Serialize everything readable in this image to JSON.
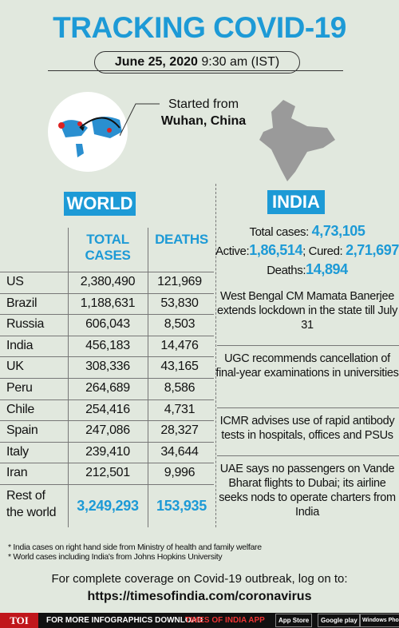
{
  "header": {
    "title": "TRACKING COVID-19",
    "date": "June 25, 2020",
    "time": "9:30 am (IST)"
  },
  "map": {
    "caption_line1": "Started from",
    "caption_line2": "Wuhan, China"
  },
  "world": {
    "label": "WORLD",
    "columns": [
      "TOTAL CASES",
      "DEATHS"
    ],
    "rows": [
      [
        "US",
        "2,380,490",
        "121,969"
      ],
      [
        "Brazil",
        "1,188,631",
        "53,830"
      ],
      [
        "Russia",
        "606,043",
        "8,503"
      ],
      [
        "India",
        "456,183",
        "14,476"
      ],
      [
        "UK",
        "308,336",
        "43,165"
      ],
      [
        "Peru",
        "264,689",
        "8,586"
      ],
      [
        "Chile",
        "254,416",
        "4,731"
      ],
      [
        "Spain",
        "247,086",
        "28,327"
      ],
      [
        "Italy",
        "239,410",
        "34,644"
      ],
      [
        "Iran",
        "212,501",
        "9,996"
      ]
    ],
    "total": [
      "Rest of the world",
      "3,249,293",
      "153,935"
    ]
  },
  "india": {
    "label": "INDIA",
    "total_label": "Total cases:",
    "total": "4,73,105",
    "active_label": "Active:",
    "active": "1,86,514",
    "cured_label": "; Cured:",
    "cured": "2,71,697",
    "deaths_label": "Deaths:",
    "deaths": "14,894",
    "news": [
      "West Bengal CM Mamata Banerjee extends lockdown in the state till July 31",
      "UGC recommends cancellation of final-year examinations in universities",
      "ICMR advises use of rapid antibody tests in hospitals, offices and PSUs",
      "UAE says no passengers on Vande Bharat flights to Dubai; its airline seeks nods to operate charters from India"
    ]
  },
  "footnotes": [
    "* India cases on right hand side from Ministry of health and family welfare",
    "* World cases including India's from Johns Hopkins University"
  ],
  "footer": {
    "text": "For complete coverage on Covid-19 outbreak, log on to:",
    "url": "https://timesofindia.com/coronavirus"
  },
  "bar": {
    "logo": "TOI",
    "text": "FOR MORE INFOGRAPHICS DOWNLOAD",
    "app": "TIMES OF INDIA APP",
    "stores": [
      "App Store",
      "Google play",
      "Windows Phone"
    ]
  }
}
